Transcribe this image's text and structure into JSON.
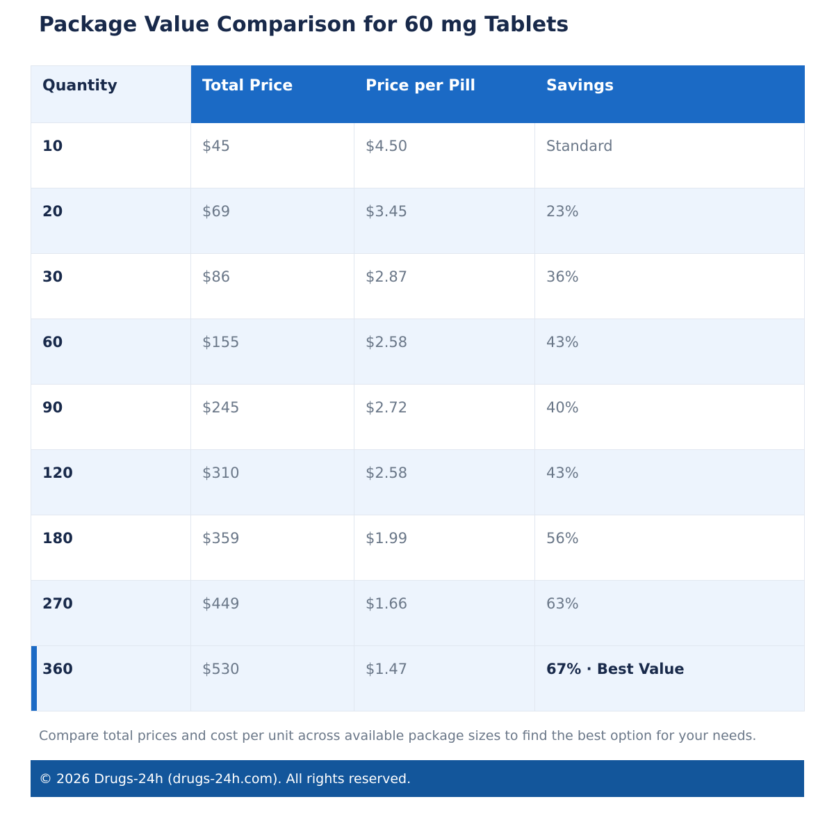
{
  "title": "Package Value Comparison for 60 mg Tablets",
  "table": {
    "headers": [
      "Quantity",
      "Total Price",
      "Price per Pill",
      "Savings"
    ],
    "rows": [
      {
        "quantity": "10",
        "total": "$45",
        "per_pill": "$4.50",
        "savings": "Standard"
      },
      {
        "quantity": "20",
        "total": "$69",
        "per_pill": "$3.45",
        "savings": "23%"
      },
      {
        "quantity": "30",
        "total": "$86",
        "per_pill": "$2.87",
        "savings": "36%"
      },
      {
        "quantity": "60",
        "total": "$155",
        "per_pill": "$2.58",
        "savings": "43%"
      },
      {
        "quantity": "90",
        "total": "$245",
        "per_pill": "$2.72",
        "savings": "40%"
      },
      {
        "quantity": "120",
        "total": "$310",
        "per_pill": "$2.58",
        "savings": "43%"
      },
      {
        "quantity": "180",
        "total": "$359",
        "per_pill": "$1.99",
        "savings": "56%"
      },
      {
        "quantity": "270",
        "total": "$449",
        "per_pill": "$1.66",
        "savings": "63%"
      },
      {
        "quantity": "360",
        "total": "$530",
        "per_pill": "$1.47",
        "savings": "67% · Best Value"
      }
    ]
  },
  "note": "Compare total prices and cost per unit across available package sizes to find the best option for your needs.",
  "footer": "© 2026 Drugs-24h (drugs-24h.com). All rights reserved.",
  "colors": {
    "accent": "#1b6ac5",
    "footer_bg": "#13569b",
    "row_alt": "#edf4fd",
    "heading_text": "#18294a",
    "muted_text": "#6a7788"
  }
}
